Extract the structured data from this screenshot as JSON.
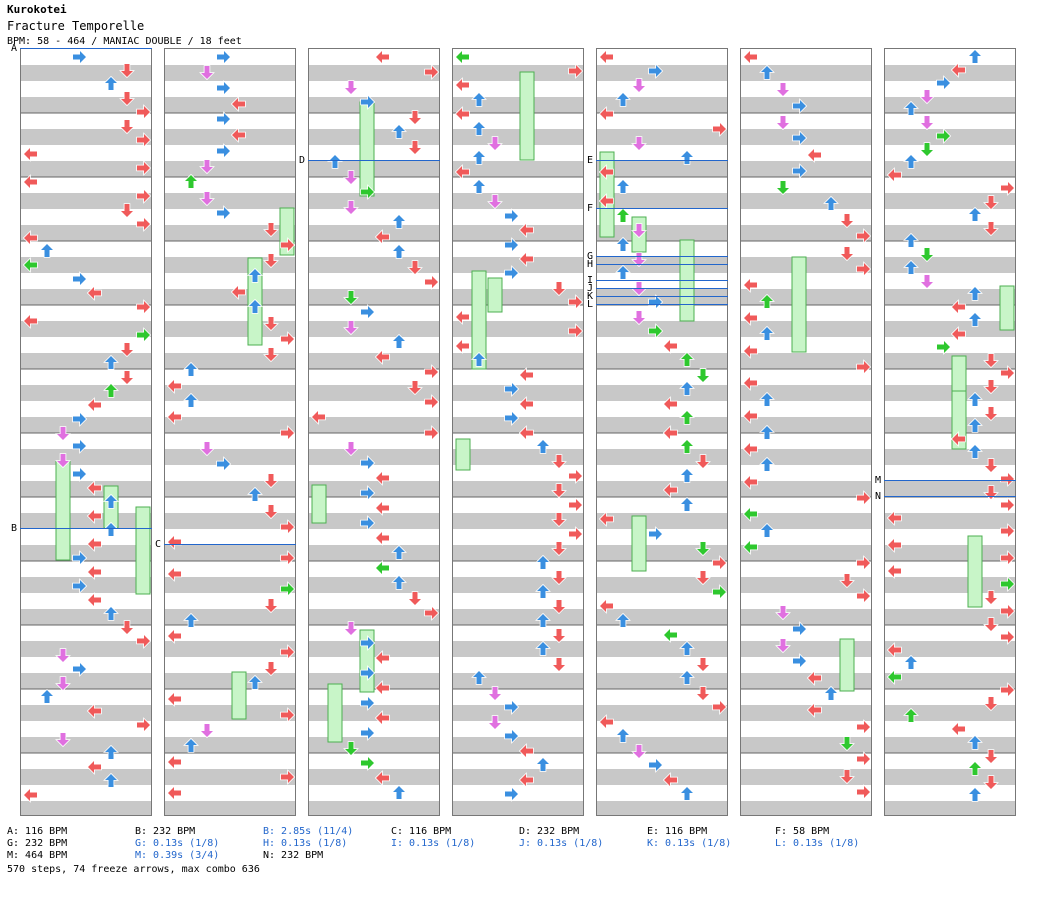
{
  "header": {
    "artist": "Kurokotei",
    "title": "Fracture Temporelle",
    "meta": "BPM: 58 - 464 / MANIAC DOUBLE / 18 feet"
  },
  "chart_data": {
    "type": "step-chart",
    "columns": 7,
    "lanes_per_column": 8,
    "lane_arrows": [
      "left",
      "down",
      "up",
      "right",
      "left",
      "down",
      "up",
      "right"
    ],
    "note_colors": {
      "red": "#f05a5a",
      "blue": "#3a8fe0",
      "pink": "#e070e0",
      "green": "#2ec82e"
    },
    "freeze_color": "#c8f5c8",
    "markers": [
      {
        "id": "A",
        "col": 0,
        "frac": 0.0
      },
      {
        "id": "B",
        "col": 0,
        "frac": 0.625
      },
      {
        "id": "C",
        "col": 1,
        "frac": 0.646
      },
      {
        "id": "D",
        "col": 2,
        "frac": 0.146
      },
      {
        "id": "E",
        "col": 4,
        "frac": 0.146
      },
      {
        "id": "F",
        "col": 4,
        "frac": 0.208
      },
      {
        "id": "G",
        "col": 4,
        "frac": 0.271
      },
      {
        "id": "H",
        "col": 4,
        "frac": 0.281
      },
      {
        "id": "I",
        "col": 4,
        "frac": 0.302
      },
      {
        "id": "J",
        "col": 4,
        "frac": 0.312
      },
      {
        "id": "K",
        "col": 4,
        "frac": 0.323
      },
      {
        "id": "L",
        "col": 4,
        "frac": 0.333
      },
      {
        "id": "M",
        "col": 6,
        "frac": 0.563
      },
      {
        "id": "N",
        "col": 6,
        "frac": 0.583
      }
    ]
  },
  "legend": [
    {
      "text": "A: 116 BPM",
      "blue": false
    },
    {
      "text": "B: 232 BPM",
      "blue": false
    },
    {
      "text": "B: 2.85s (11/4)",
      "blue": true
    },
    {
      "text": "C: 116 BPM",
      "blue": false
    },
    {
      "text": "D: 232 BPM",
      "blue": false
    },
    {
      "text": "E: 116 BPM",
      "blue": false
    },
    {
      "text": "F: 58 BPM",
      "blue": false
    },
    {
      "text": "G: 232 BPM",
      "blue": false
    },
    {
      "text": "G: 0.13s (1/8)",
      "blue": true
    },
    {
      "text": "H: 0.13s (1/8)",
      "blue": true
    },
    {
      "text": "I: 0.13s (1/8)",
      "blue": true
    },
    {
      "text": "J: 0.13s (1/8)",
      "blue": true
    },
    {
      "text": "K: 0.13s (1/8)",
      "blue": true
    },
    {
      "text": "L: 0.13s (1/8)",
      "blue": true
    },
    {
      "text": "M: 464 BPM",
      "blue": false
    },
    {
      "text": "M: 0.39s (3/4)",
      "blue": true
    },
    {
      "text": "N: 232 BPM",
      "blue": false
    }
  ],
  "summary": "570 steps, 74 freeze arrows, max combo 636"
}
